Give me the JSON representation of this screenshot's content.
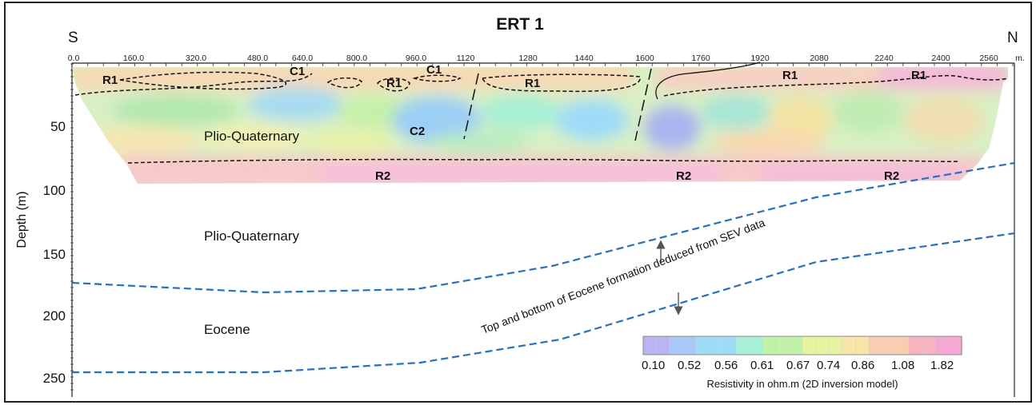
{
  "figure": {
    "title": "ERT 1",
    "south_label": "S",
    "north_label": "N",
    "x_unit": "m.",
    "y_axis_label": "Depth (m)",
    "x_ticks": [
      "0.0",
      "160.0",
      "320.0",
      "480.0",
      "640.0",
      "800.0",
      "960.0",
      "1120",
      "1280",
      "1440",
      "1600",
      "1760",
      "1920",
      "2080",
      "2240",
      "2400",
      "2560"
    ],
    "y_ticks": [
      "50",
      "100",
      "150",
      "200",
      "250"
    ]
  },
  "zones": {
    "r1_a": "R1",
    "r1_b": "R1",
    "r1_c": "R1",
    "r1_d": "R1",
    "r1_e": "R1",
    "c1_a": "C1",
    "c1_b": "C1",
    "c2": "C2",
    "r2_a": "R2",
    "r2_b": "R2",
    "r2_c": "R2"
  },
  "units": {
    "plio_upper": "Plio-Quaternary",
    "plio_lower": "Plio-Quaternary",
    "eocene": "Eocene"
  },
  "annotation": "Top and bottom of Eocene formation deduced from SEV data",
  "colorbar": {
    "ticks": [
      "0.10",
      "0.52",
      "0.56",
      "0.61",
      "0.67",
      "0.74",
      "0.86",
      "1.08",
      "1.82"
    ],
    "title": "Resistivity in ohm.m (2D inversion model)",
    "colors": [
      "#b9b5f4",
      "#a8c8f8",
      "#9fdcf8",
      "#a6f0d8",
      "#c0f2a8",
      "#e8f3a0",
      "#f8e5a8",
      "#f8cdb0",
      "#f8b3c0",
      "#f6a8d4"
    ]
  }
}
